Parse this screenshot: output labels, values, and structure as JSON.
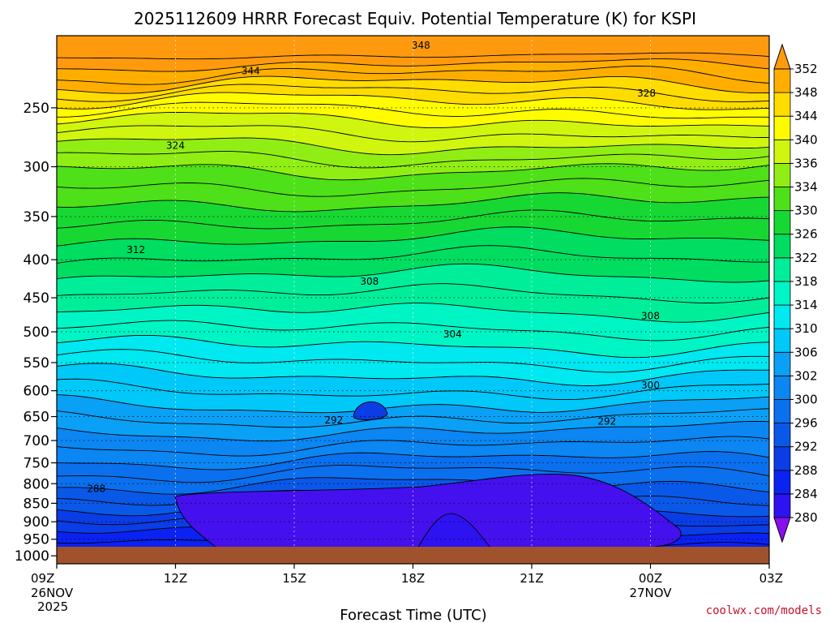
{
  "chart_data": {
    "type": "contour",
    "title": "2025112609 HRRR Forecast Equiv. Potential Temperature (K) for KSPI",
    "xlabel": "Forecast Time (UTC)",
    "ylabel": "",
    "credit": "coolwx.com/models",
    "x_ticks": [
      {
        "label": "09Z",
        "label2": "26NOV",
        "label3": "2025",
        "hour": 0
      },
      {
        "label": "12Z",
        "label2": "",
        "label3": "",
        "hour": 3
      },
      {
        "label": "15Z",
        "label2": "",
        "label3": "",
        "hour": 6
      },
      {
        "label": "18Z",
        "label2": "",
        "label3": "",
        "hour": 9
      },
      {
        "label": "21Z",
        "label2": "",
        "label3": "",
        "hour": 12
      },
      {
        "label": "00Z",
        "label2": "27NOV",
        "label3": "",
        "hour": 15
      },
      {
        "label": "03Z",
        "label2": "",
        "label3": "",
        "hour": 18
      }
    ],
    "xlim_hours": [
      0,
      18
    ],
    "y_ticks": [
      250,
      300,
      350,
      400,
      450,
      500,
      550,
      600,
      650,
      700,
      750,
      800,
      850,
      900,
      950,
      1000
    ],
    "ylim_hPa": [
      200,
      1025
    ],
    "y_scale": "log-pressure",
    "colorbar": {
      "levels": [
        280,
        284,
        288,
        292,
        296,
        300,
        302,
        306,
        310,
        314,
        318,
        322,
        326,
        330,
        334,
        336,
        340,
        344,
        348,
        352
      ],
      "colors": [
        "#8a0ef0",
        "#2d12f2",
        "#0a22f2",
        "#0a3de6",
        "#0a58e8",
        "#0a70ee",
        "#0b86f2",
        "#0aa0f5",
        "#00c8f8",
        "#00e8f0",
        "#00f5c4",
        "#00ee9a",
        "#00dd60",
        "#17d833",
        "#4ee018",
        "#90ee14",
        "#d0f50e",
        "#fffc00",
        "#ffdc00",
        "#ffae00",
        "#ff9a0f"
      ],
      "extend": "both"
    },
    "contour_labels": [
      {
        "text": "348",
        "hour": 9.2,
        "p": 206
      },
      {
        "text": "344",
        "hour": 4.9,
        "p": 223
      },
      {
        "text": "328",
        "hour": 14.9,
        "p": 239
      },
      {
        "text": "324",
        "hour": 3.0,
        "p": 281
      },
      {
        "text": "312",
        "hour": 2.0,
        "p": 388
      },
      {
        "text": "308",
        "hour": 7.9,
        "p": 428
      },
      {
        "text": "308",
        "hour": 15.0,
        "p": 476
      },
      {
        "text": "304",
        "hour": 10.0,
        "p": 504
      },
      {
        "text": "300",
        "hour": 15.0,
        "p": 590
      },
      {
        "text": "292",
        "hour": 7.0,
        "p": 657
      },
      {
        "text": "292",
        "hour": 13.9,
        "p": 660
      },
      {
        "text": "288",
        "hour": 1.0,
        "p": 813
      }
    ]
  }
}
